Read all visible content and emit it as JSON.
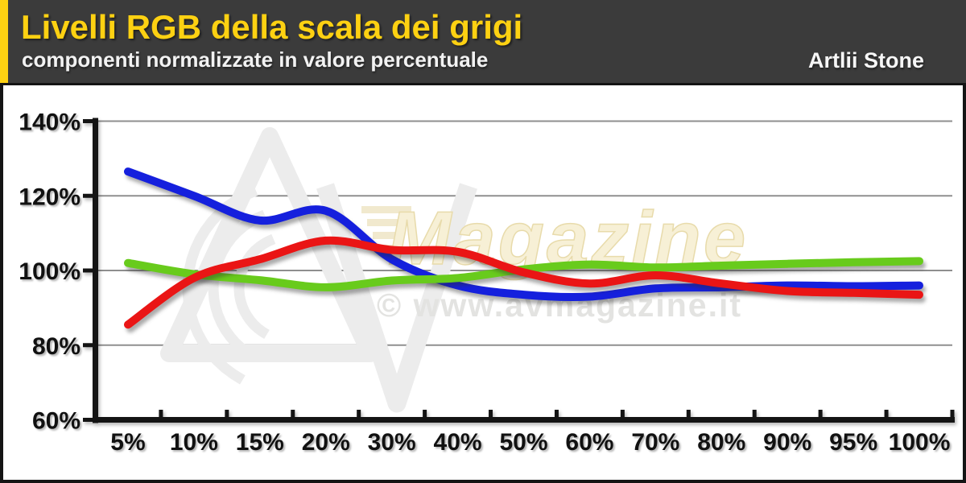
{
  "header": {
    "title": "Livelli RGB della scala dei grigi",
    "subtitle": "componenti normalizzate in valore percentuale",
    "source_label": "Artlii Stone",
    "accent_color": "#fdd112",
    "background_color": "#3b3b3b"
  },
  "watermark": {
    "brand_text": "Magazine",
    "url_text": "© www.avmagazine.it",
    "brand_color": "#f7f0d6",
    "brand_outline": "#e8dbab",
    "url_color": "#e3e3e1",
    "logo_color": "#ececec"
  },
  "chart_data": {
    "type": "line",
    "title": "Livelli RGB della scala dei grigi",
    "subtitle": "componenti normalizzate in valore percentuale",
    "xlabel": "",
    "ylabel": "",
    "grid": true,
    "legend_position": "none",
    "ylim": [
      60,
      140
    ],
    "y_ticks": [
      {
        "value": 140,
        "label": "140%"
      },
      {
        "value": 120,
        "label": "120%"
      },
      {
        "value": 100,
        "label": "100%"
      },
      {
        "value": 80,
        "label": "80%"
      },
      {
        "value": 60,
        "label": "60%"
      }
    ],
    "categories": [
      "5%",
      "10%",
      "15%",
      "20%",
      "30%",
      "40%",
      "50%",
      "60%",
      "70%",
      "80%",
      "90%",
      "95%",
      "100%"
    ],
    "series": [
      {
        "name": "blue-channel",
        "color": "#1520dd",
        "values": [
          126.5,
          120.0,
          113.4,
          116.0,
          103.0,
          96.0,
          93.5,
          93.0,
          95.2,
          95.5,
          96.0,
          95.8,
          96.0
        ]
      },
      {
        "name": "green-channel",
        "color": "#68cb1c",
        "values": [
          102.0,
          99.0,
          97.4,
          95.5,
          97.3,
          98.0,
          100.3,
          101.6,
          100.8,
          101.3,
          101.8,
          102.2,
          102.5
        ]
      },
      {
        "name": "red-channel",
        "color": "#ea1515",
        "values": [
          85.5,
          98.0,
          103.0,
          108.0,
          105.5,
          105.0,
          99.5,
          96.5,
          98.7,
          96.5,
          94.5,
          94.0,
          93.5
        ]
      }
    ],
    "axis_color": "#141414",
    "gridline_color": "#8f8f8f",
    "label_color": "#111111"
  }
}
